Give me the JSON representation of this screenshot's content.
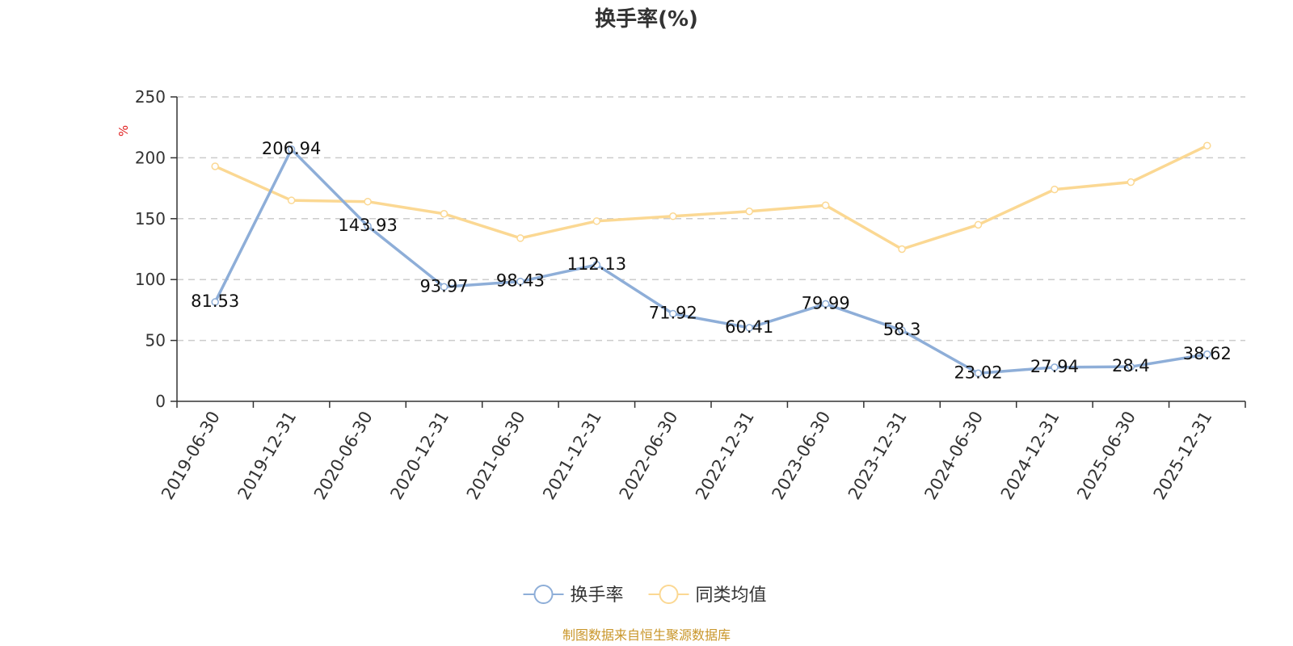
{
  "chart_data": {
    "type": "line",
    "title": "换手率(%)",
    "xlabel": "",
    "ylabel": "%",
    "ylim": [
      0,
      250
    ],
    "yticks": [
      0,
      50,
      100,
      150,
      200,
      250
    ],
    "grid": true,
    "legend_position": "bottom-center",
    "categories": [
      "2019-06-30",
      "2019-12-31",
      "2020-06-30",
      "2020-12-31",
      "2021-06-30",
      "2021-12-31",
      "2022-06-30",
      "2022-12-31",
      "2023-06-30",
      "2023-12-31",
      "2024-06-30",
      "2024-12-31",
      "2025-06-30",
      "2025-12-31"
    ],
    "series": [
      {
        "name": "换手率",
        "color": "#8eaed8",
        "show_labels": true,
        "values": [
          81.53,
          206.94,
          143.93,
          93.97,
          98.43,
          112.13,
          71.92,
          60.41,
          79.99,
          58.3,
          23.02,
          27.94,
          28.4,
          38.62
        ],
        "labels": [
          "81.53",
          "206.94",
          "143.93",
          "93.97",
          "98.43",
          "112.13",
          "71.92",
          "60.41",
          "79.99",
          "58.3",
          "23.02",
          "27.94",
          "28.4",
          "38.62"
        ]
      },
      {
        "name": "同类均值",
        "color": "#fbd893",
        "show_labels": false,
        "values": [
          193,
          165,
          164,
          154,
          134,
          148,
          152,
          156,
          161,
          125,
          145,
          174,
          180,
          210
        ]
      }
    ],
    "source": "制图数据来自恒生聚源数据库",
    "unit_color": "#e02020",
    "axis_color": "#333333",
    "grid_color": "#cccccc"
  }
}
